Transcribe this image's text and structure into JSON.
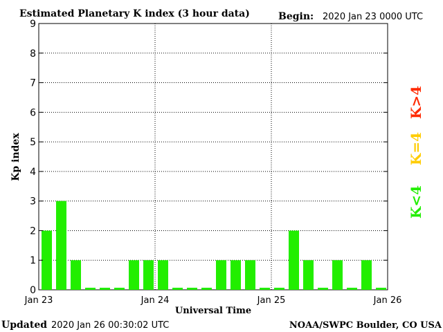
{
  "header": {
    "title": "Estimated Planetary K index (3 hour data)",
    "begin_label": "Begin:",
    "begin_value": "2020 Jan 23 0000 UTC"
  },
  "footer": {
    "updated_label": "Updated",
    "updated_value": "2020 Jan 26 00:30:02 UTC",
    "credit": "NOAA/SWPC Boulder, CO USA"
  },
  "legend": [
    {
      "label": "K>4",
      "color": "#ff2a00"
    },
    {
      "label": "K=4",
      "color": "#ffcc00"
    },
    {
      "label": "K<4",
      "color": "#22ee00"
    }
  ],
  "chart_data": {
    "type": "bar",
    "title": "Estimated Planetary K index (3 hour data)",
    "xlabel": "Universal Time",
    "ylabel": "Kp index",
    "ylim": [
      0,
      9
    ],
    "yticks": [
      "0",
      "1",
      "2",
      "3",
      "4",
      "5",
      "6",
      "7",
      "8",
      "9"
    ],
    "xticks": [
      "Jan 23",
      "Jan 24",
      "Jan 25",
      "Jan 26"
    ],
    "bar_color": "#22ee00",
    "grid": true,
    "values": [
      2,
      3,
      1,
      0,
      0,
      0,
      1,
      1,
      1,
      0,
      0,
      0,
      1,
      1,
      1,
      0,
      0,
      2,
      1,
      0,
      1,
      0,
      1,
      0
    ]
  }
}
